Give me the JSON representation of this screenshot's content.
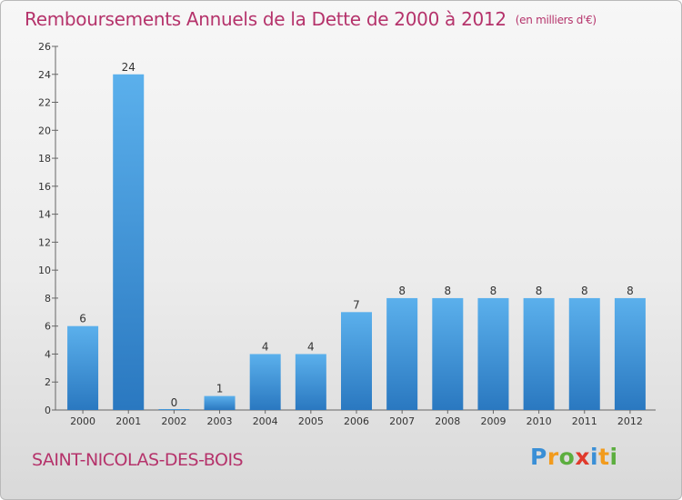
{
  "title": "Remboursements Annuels de la Dette de 2000 à 2012",
  "unit": "(en milliers d'€)",
  "commune": "SAINT-NICOLAS-DES-BOIS",
  "logo": {
    "letters": [
      "P",
      "r",
      "o",
      "x",
      "i",
      "t",
      "i"
    ],
    "colors": [
      "#3a8fd6",
      "#f29b1d",
      "#5cae3f",
      "#e03a2c",
      "#3a8fd6",
      "#f29b1d",
      "#5cae3f"
    ]
  },
  "colors": {
    "bar": "#4a9fe0",
    "bar_dark": "#2a78c0",
    "title": "#b5336b"
  },
  "chart_data": {
    "type": "bar",
    "title": "Remboursements Annuels de la Dette de 2000 à 2012",
    "categories": [
      "2000",
      "2001",
      "2002",
      "2003",
      "2004",
      "2005",
      "2006",
      "2007",
      "2008",
      "2009",
      "2010",
      "2011",
      "2012"
    ],
    "values": [
      6,
      24,
      0,
      1,
      4,
      4,
      7,
      8,
      8,
      8,
      8,
      8,
      8
    ],
    "ylim": [
      0,
      26
    ],
    "yticks": [
      0,
      2,
      4,
      6,
      8,
      10,
      12,
      14,
      16,
      18,
      20,
      22,
      24,
      26
    ],
    "xlabel": "",
    "ylabel": "",
    "grid": false
  }
}
